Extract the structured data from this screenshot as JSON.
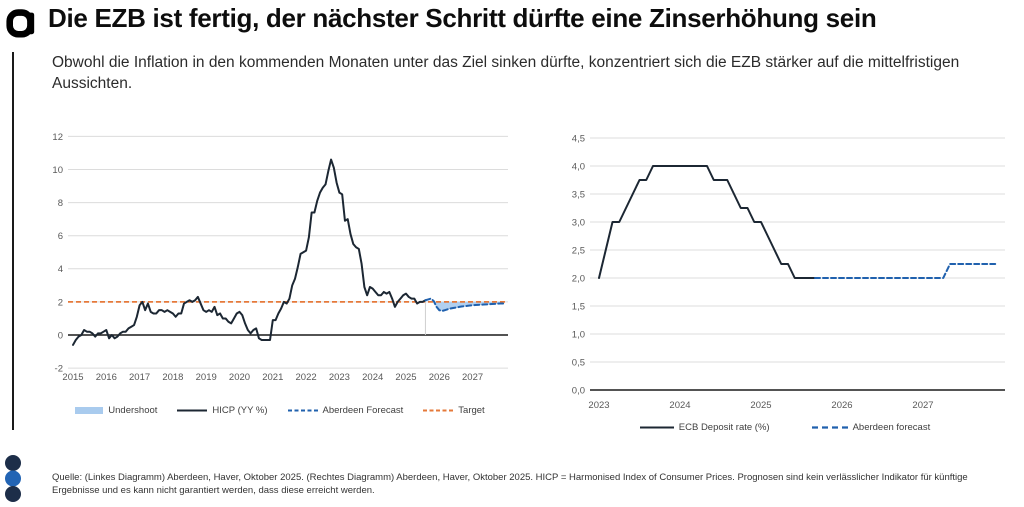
{
  "brand": {
    "logo_glyph": "a",
    "dark_line": "#1c2733",
    "blue": "#2061ae",
    "orange": "#e5793a",
    "undershoot_fill": "#a9cbee",
    "grid": "#dcdcdc",
    "dot_navy": "#1d2e49",
    "dot_blue": "#2264b4"
  },
  "header": {
    "title": "Die EZB ist fertig, der nächster Schritt dürfte eine Zinserhöhung sein",
    "subtitle": "Obwohl die Inflation in den kommenden Monaten unter das Ziel sinken dürfte, konzentriert sich die EZB stärker auf die mittelfristigen Aussichten."
  },
  "footer": {
    "source": "Quelle: (Linkes Diagramm) Aberdeen, Haver, Oktober 2025. (Rechtes Diagramm) Aberdeen, Haver, Oktober 2025. HICP = Harmonised Index of Consumer Prices. Prognosen sind kein verlässlicher Indikator für künftige Ergebnisse und es kann nicht garantiert werden, dass diese erreicht werden."
  },
  "chart_data": [
    {
      "type": "line",
      "title": "",
      "x_min": 2015,
      "xticks": [
        2015,
        2016,
        2017,
        2018,
        2019,
        2020,
        2021,
        2022,
        2023,
        2024,
        2025,
        2026,
        2027
      ],
      "ylim": [
        -2,
        12
      ],
      "yticks": [
        -2,
        0,
        2,
        4,
        6,
        8,
        10,
        12
      ],
      "target": 2,
      "grid": true,
      "legend_position": "bottom",
      "legend": [
        {
          "label": "Undershoot",
          "swatch": "area"
        },
        {
          "label": "HICP (YY %)",
          "swatch": "solid-dark"
        },
        {
          "label": "Aberdeen Forecast",
          "swatch": "dashed-blue"
        },
        {
          "label": "Target",
          "swatch": "dashed-orange"
        }
      ],
      "series": [
        {
          "name": "HICP (YY %)",
          "style": "solid",
          "color_key": "dark_line",
          "start_year": 2015,
          "start_month": 1,
          "values": [
            -0.6,
            -0.3,
            -0.1,
            0.0,
            0.3,
            0.2,
            0.2,
            0.1,
            -0.1,
            0.1,
            0.1,
            0.2,
            0.3,
            -0.2,
            0.0,
            -0.2,
            -0.1,
            0.1,
            0.2,
            0.2,
            0.4,
            0.5,
            0.6,
            1.1,
            1.8,
            2.0,
            1.5,
            1.9,
            1.4,
            1.3,
            1.3,
            1.5,
            1.5,
            1.4,
            1.5,
            1.4,
            1.3,
            1.1,
            1.3,
            1.3,
            1.9,
            2.0,
            2.1,
            2.0,
            2.1,
            2.3,
            1.9,
            1.5,
            1.4,
            1.5,
            1.4,
            1.7,
            1.2,
            1.3,
            1.0,
            1.0,
            0.8,
            0.7,
            1.0,
            1.3,
            1.4,
            1.2,
            0.7,
            0.3,
            0.1,
            0.3,
            0.4,
            -0.2,
            -0.3,
            -0.3,
            -0.3,
            -0.3,
            0.9,
            0.9,
            1.3,
            1.6,
            2.0,
            1.9,
            2.2,
            3.0,
            3.4,
            4.1,
            4.9,
            5.0,
            5.1,
            5.9,
            7.4,
            7.4,
            8.1,
            8.6,
            8.9,
            9.1,
            9.9,
            10.6,
            10.1,
            9.2,
            8.6,
            8.5,
            6.9,
            7.0,
            6.1,
            5.5,
            5.3,
            5.2,
            4.3,
            2.9,
            2.4,
            2.9,
            2.8,
            2.6,
            2.4,
            2.4,
            2.6,
            2.5,
            2.6,
            2.2,
            1.7,
            2.0,
            2.2,
            2.4,
            2.5,
            2.3,
            2.2,
            2.2,
            1.9,
            2.0,
            2.0,
            2.1
          ]
        },
        {
          "name": "Aberdeen Forecast",
          "style": "dashed",
          "color_key": "blue",
          "start_year": 2025,
          "start_month": 8,
          "divider": true,
          "undershoot_area": true,
          "values": [
            2.1,
            2.15,
            2.2,
            2.05,
            1.7,
            1.5,
            1.45,
            1.5,
            1.55,
            1.6,
            1.63,
            1.66,
            1.69,
            1.72,
            1.74,
            1.76,
            1.78,
            1.8,
            1.81,
            1.82,
            1.83,
            1.84,
            1.85,
            1.86,
            1.87,
            1.88,
            1.89,
            1.9,
            1.9
          ]
        }
      ]
    },
    {
      "type": "line",
      "title": "",
      "x_min": 2023,
      "xticks": [
        2023,
        2024,
        2025,
        2026,
        2027
      ],
      "ylim": [
        0,
        4.5
      ],
      "yticks": [
        0,
        0.5,
        1,
        1.5,
        2,
        2.5,
        3,
        3.5,
        4,
        4.5
      ],
      "ytick_labels": [
        "0,0",
        "0,5",
        "1,0",
        "1,5",
        "2,0",
        "2,5",
        "3,0",
        "3,5",
        "4,0",
        "4,5"
      ],
      "grid": true,
      "legend_position": "bottom",
      "legend": [
        {
          "label": "ECB Deposit rate (%)",
          "swatch": "solid-dark"
        },
        {
          "label": "Aberdeen forecast",
          "swatch": "dashed-blue"
        }
      ],
      "series": [
        {
          "name": "ECB Deposit rate (%)",
          "style": "solid",
          "color_key": "dark_line",
          "start_year": 2023,
          "start_month": 1,
          "values": [
            2.0,
            2.5,
            3.0,
            3.0,
            3.25,
            3.5,
            3.75,
            3.75,
            4.0,
            4.0,
            4.0,
            4.0,
            4.0,
            4.0,
            4.0,
            4.0,
            4.0,
            3.75,
            3.75,
            3.75,
            3.5,
            3.25,
            3.25,
            3.0,
            3.0,
            2.75,
            2.5,
            2.25,
            2.25,
            2.0,
            2.0,
            2.0,
            2.0
          ]
        },
        {
          "name": "Aberdeen forecast",
          "style": "dashed",
          "color_key": "blue",
          "start_year": 2025,
          "start_month": 9,
          "values": [
            2.0,
            2.0,
            2.0,
            2.0,
            2.0,
            2.0,
            2.0,
            2.0,
            2.0,
            2.0,
            2.0,
            2.0,
            2.0,
            2.0,
            2.0,
            2.0,
            2.0,
            2.0,
            2.0,
            2.0,
            2.25,
            2.25,
            2.25,
            2.25,
            2.25,
            2.25,
            2.25,
            2.25
          ]
        }
      ]
    }
  ]
}
